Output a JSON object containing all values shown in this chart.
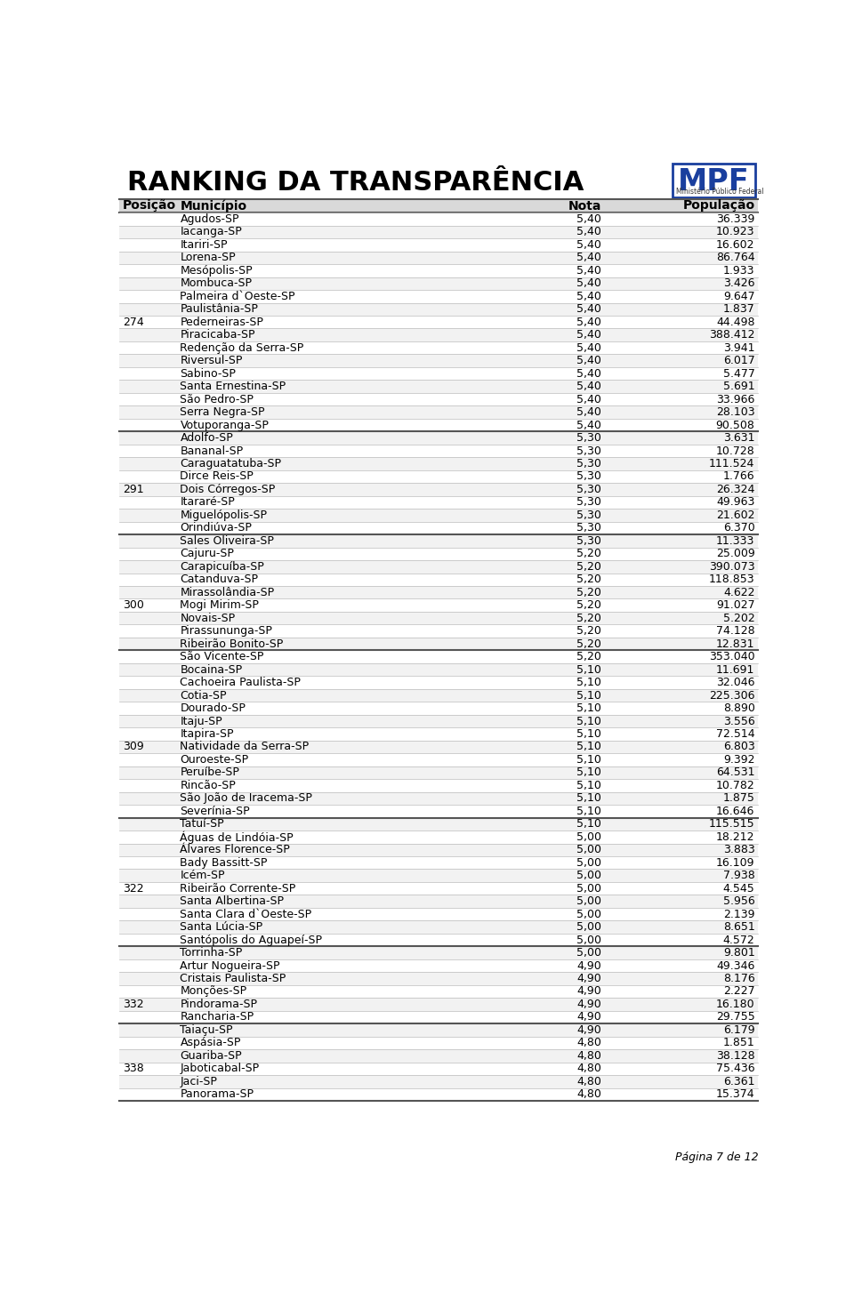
{
  "title": "RANKING DA TRANSPARÊNCIA",
  "page_label": "Página 7 de 12",
  "columns": [
    "Posição",
    "Município",
    "Nota",
    "População"
  ],
  "header_bg": "#d9d9d9",
  "row_bg_odd": "#ffffff",
  "row_bg_even": "#f2f2f2",
  "separator_color": "#bbbbbb",
  "group_separator_color": "#555555",
  "rows": [
    [
      "",
      "Agudos-SP",
      "5,40",
      "36.339"
    ],
    [
      "",
      "Iacanga-SP",
      "5,40",
      "10.923"
    ],
    [
      "",
      "Itariri-SP",
      "5,40",
      "16.602"
    ],
    [
      "",
      "Lorena-SP",
      "5,40",
      "86.764"
    ],
    [
      "",
      "Mesópolis-SP",
      "5,40",
      "1.933"
    ],
    [
      "",
      "Mombuca-SP",
      "5,40",
      "3.426"
    ],
    [
      "",
      "Palmeira d`Oeste-SP",
      "5,40",
      "9.647"
    ],
    [
      "",
      "Paulistânia-SP",
      "5,40",
      "1.837"
    ],
    [
      "274",
      "Pederneiras-SP",
      "5,40",
      "44.498"
    ],
    [
      "",
      "Piracicaba-SP",
      "5,40",
      "388.412"
    ],
    [
      "",
      "Redenção da Serra-SP",
      "5,40",
      "3.941"
    ],
    [
      "",
      "Riversul-SP",
      "5,40",
      "6.017"
    ],
    [
      "",
      "Sabino-SP",
      "5,40",
      "5.477"
    ],
    [
      "",
      "Santa Ernestina-SP",
      "5,40",
      "5.691"
    ],
    [
      "",
      "São Pedro-SP",
      "5,40",
      "33.966"
    ],
    [
      "",
      "Serra Negra-SP",
      "5,40",
      "28.103"
    ],
    [
      "",
      "Votuporanga-SP",
      "5,40",
      "90.508"
    ],
    [
      "",
      "Adolfo-SP",
      "5,30",
      "3.631"
    ],
    [
      "",
      "Bananal-SP",
      "5,30",
      "10.728"
    ],
    [
      "",
      "Caraguatatuba-SP",
      "5,30",
      "111.524"
    ],
    [
      "",
      "Dirce Reis-SP",
      "5,30",
      "1.766"
    ],
    [
      "291",
      "Dois Córregos-SP",
      "5,30",
      "26.324"
    ],
    [
      "",
      "Itararé-SP",
      "5,30",
      "49.963"
    ],
    [
      "",
      "Miguelópolis-SP",
      "5,30",
      "21.602"
    ],
    [
      "",
      "Orindiúva-SP",
      "5,30",
      "6.370"
    ],
    [
      "",
      "Sales Oliveira-SP",
      "5,30",
      "11.333"
    ],
    [
      "",
      "Cajuru-SP",
      "5,20",
      "25.009"
    ],
    [
      "",
      "Carapicuíba-SP",
      "5,20",
      "390.073"
    ],
    [
      "",
      "Catanduva-SP",
      "5,20",
      "118.853"
    ],
    [
      "",
      "Mirassolândia-SP",
      "5,20",
      "4.622"
    ],
    [
      "300",
      "Mogi Mirim-SP",
      "5,20",
      "91.027"
    ],
    [
      "",
      "Novais-SP",
      "5,20",
      "5.202"
    ],
    [
      "",
      "Pirassununga-SP",
      "5,20",
      "74.128"
    ],
    [
      "",
      "Ribeirão Bonito-SP",
      "5,20",
      "12.831"
    ],
    [
      "",
      "São Vicente-SP",
      "5,20",
      "353.040"
    ],
    [
      "",
      "Bocaina-SP",
      "5,10",
      "11.691"
    ],
    [
      "",
      "Cachoeira Paulista-SP",
      "5,10",
      "32.046"
    ],
    [
      "",
      "Cotia-SP",
      "5,10",
      "225.306"
    ],
    [
      "",
      "Dourado-SP",
      "5,10",
      "8.890"
    ],
    [
      "",
      "Itaju-SP",
      "5,10",
      "3.556"
    ],
    [
      "",
      "Itapira-SP",
      "5,10",
      "72.514"
    ],
    [
      "309",
      "Natividade da Serra-SP",
      "5,10",
      "6.803"
    ],
    [
      "",
      "Ouroeste-SP",
      "5,10",
      "9.392"
    ],
    [
      "",
      "Peruíbe-SP",
      "5,10",
      "64.531"
    ],
    [
      "",
      "Rincão-SP",
      "5,10",
      "10.782"
    ],
    [
      "",
      "São João de Iracema-SP",
      "5,10",
      "1.875"
    ],
    [
      "",
      "Severínia-SP",
      "5,10",
      "16.646"
    ],
    [
      "",
      "Tatuí-SP",
      "5,10",
      "115.515"
    ],
    [
      "",
      "Águas de Lindóia-SP",
      "5,00",
      "18.212"
    ],
    [
      "",
      "Álvares Florence-SP",
      "5,00",
      "3.883"
    ],
    [
      "",
      "Bady Bassitt-SP",
      "5,00",
      "16.109"
    ],
    [
      "",
      "Icém-SP",
      "5,00",
      "7.938"
    ],
    [
      "322",
      "Ribeirão Corrente-SP",
      "5,00",
      "4.545"
    ],
    [
      "",
      "Santa Albertina-SP",
      "5,00",
      "5.956"
    ],
    [
      "",
      "Santa Clara d`Oeste-SP",
      "5,00",
      "2.139"
    ],
    [
      "",
      "Santa Lúcia-SP",
      "5,00",
      "8.651"
    ],
    [
      "",
      "Santópolis do Aguapeí-SP",
      "5,00",
      "4.572"
    ],
    [
      "",
      "Torrinha-SP",
      "5,00",
      "9.801"
    ],
    [
      "",
      "Artur Nogueira-SP",
      "4,90",
      "49.346"
    ],
    [
      "",
      "Cristais Paulista-SP",
      "4,90",
      "8.176"
    ],
    [
      "",
      "Monções-SP",
      "4,90",
      "2.227"
    ],
    [
      "332",
      "Pindorama-SP",
      "4,90",
      "16.180"
    ],
    [
      "",
      "Rancharia-SP",
      "4,90",
      "29.755"
    ],
    [
      "",
      "Taiaçu-SP",
      "4,90",
      "6.179"
    ],
    [
      "",
      "Aspásia-SP",
      "4,80",
      "1.851"
    ],
    [
      "",
      "Guariba-SP",
      "4,80",
      "38.128"
    ],
    [
      "338",
      "Jaboticabal-SP",
      "4,80",
      "75.436"
    ],
    [
      "",
      "Jaci-SP",
      "4,80",
      "6.361"
    ],
    [
      "",
      "Panorama-SP",
      "4,80",
      "15.374"
    ]
  ],
  "group_breaks": [
    17,
    25,
    34,
    47,
    57,
    63
  ],
  "mpf_logo_color": "#1a3f9e",
  "font_size_title": 22,
  "font_size_header": 10,
  "font_size_row": 9,
  "font_size_page": 9
}
